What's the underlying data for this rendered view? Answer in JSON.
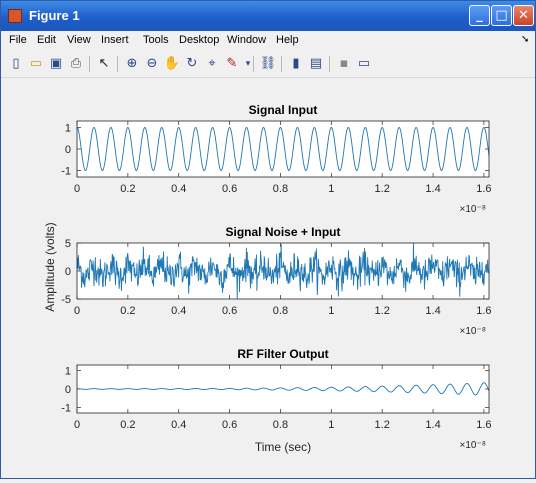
{
  "window": {
    "title": "Figure 1"
  },
  "menu": [
    "File",
    "Edit",
    "View",
    "Insert",
    "Tools",
    "Desktop",
    "Window",
    "Help"
  ],
  "toolbar_icons": [
    "new-figure-icon",
    "open-file-icon",
    "save-icon",
    "print-icon",
    "pointer-icon",
    "zoom-in-icon",
    "zoom-out-icon",
    "pan-icon",
    "rotate-icon",
    "data-cursor-icon",
    "brush-icon",
    "link-icon",
    "colorbar-icon",
    "legend-icon",
    "hide-plot-tools-icon",
    "show-plot-tools-icon"
  ],
  "colors": {
    "line": "#1f77b4",
    "axes_bg": "#ffffff",
    "figure_bg": "#f0f0f0"
  },
  "shared": {
    "xlabel": "Time (sec)",
    "ylabel": "Amplitude (volts)",
    "x_exponent": "×10⁻⁸",
    "x_ticks": [
      "0",
      "0.2",
      "0.4",
      "0.6",
      "0.8",
      "1",
      "1.2",
      "1.4",
      "1.6"
    ]
  },
  "chart_data": [
    {
      "type": "line",
      "title": "Signal Input",
      "xlim": [
        0,
        1.62e-08
      ],
      "ylim": [
        -1.3,
        1.3
      ],
      "yticks": [
        "1",
        "0",
        "-1"
      ],
      "ytick_values": [
        1,
        0,
        -1
      ],
      "series": [
        {
          "kind": "sine",
          "amplitude": 1.0,
          "frequency_hz": 1500000000.0
        }
      ]
    },
    {
      "type": "line",
      "title": "Signal Noise + Input",
      "xlim": [
        0,
        1.62e-08
      ],
      "ylim": [
        -5,
        5
      ],
      "yticks": [
        "5",
        "0",
        "-5"
      ],
      "ytick_values": [
        5,
        0,
        -5
      ],
      "series": [
        {
          "kind": "sine_plus_noise",
          "amplitude": 1.0,
          "frequency_hz": 1500000000.0,
          "noise_std": 1.4
        }
      ]
    },
    {
      "type": "line",
      "title": "RF Filter Output",
      "xlim": [
        0,
        1.62e-08
      ],
      "ylim": [
        -1.3,
        1.3
      ],
      "yticks": [
        "1",
        "0",
        "-1"
      ],
      "ytick_values": [
        1,
        0,
        -1
      ],
      "series": [
        {
          "kind": "growing_sine",
          "amplitude_start": 0.02,
          "amplitude_end": 0.35,
          "frequency_hz": 1500000000.0
        }
      ]
    }
  ]
}
